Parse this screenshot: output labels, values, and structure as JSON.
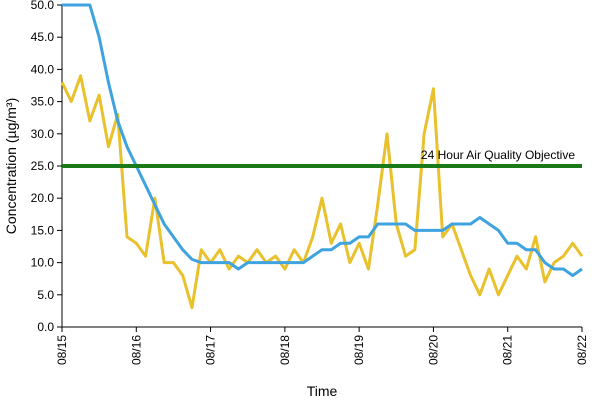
{
  "chart_data": {
    "type": "line",
    "categories": [
      "08/15",
      null,
      null,
      null,
      null,
      null,
      null,
      null,
      "08/16",
      null,
      null,
      null,
      null,
      null,
      null,
      null,
      "08/17",
      null,
      null,
      null,
      null,
      null,
      null,
      null,
      "08/18",
      null,
      null,
      null,
      null,
      null,
      null,
      null,
      "08/19",
      null,
      null,
      null,
      null,
      null,
      null,
      null,
      "08/20",
      null,
      null,
      null,
      null,
      null,
      null,
      null,
      "08/21",
      null,
      null,
      null,
      null,
      null,
      null,
      null,
      "08/22"
    ],
    "series": [
      {
        "color": "#e8c12c",
        "values": [
          38,
          35,
          39,
          32,
          36,
          28,
          33,
          14,
          13,
          11,
          20,
          10,
          10,
          8,
          3,
          12,
          10,
          12,
          9,
          11,
          10,
          12,
          10,
          11,
          9,
          12,
          10,
          14,
          20,
          13,
          16,
          10,
          13,
          9,
          19,
          30,
          16,
          11,
          12,
          30,
          37,
          14,
          16,
          12,
          8,
          5,
          9,
          5,
          8,
          11,
          9,
          14,
          7,
          10,
          11,
          13,
          11
        ]
      },
      {
        "color": "#3fa3e0",
        "values": [
          50,
          50,
          50,
          50,
          45,
          38,
          32,
          28,
          25,
          22,
          19,
          16,
          14,
          12,
          10.5,
          10,
          10,
          10,
          10,
          9,
          10,
          10,
          10,
          10,
          10,
          10,
          10,
          11,
          12,
          12,
          13,
          13,
          14,
          14,
          16,
          16,
          16,
          16,
          15,
          15,
          15,
          15,
          16,
          16,
          16,
          17,
          16,
          15,
          13,
          13,
          12,
          12,
          10,
          9,
          9,
          8,
          9
        ]
      }
    ],
    "reference_line": {
      "value": 25,
      "label": "24 Hour Air Quality Objective",
      "color": "#1a7a1a"
    },
    "xlabel": "Time",
    "ylabel": "Concentration (µg/m³)",
    "ylim": [
      0,
      50
    ],
    "yticks": [
      {
        "value": 0,
        "label": "0.0"
      },
      {
        "value": 5,
        "label": "5.0"
      },
      {
        "value": 10,
        "label": "10.0"
      },
      {
        "value": 15,
        "label": "15.0"
      },
      {
        "value": 20,
        "label": "20.0"
      },
      {
        "value": 25,
        "label": "25.0"
      },
      {
        "value": 30,
        "label": "30.0"
      },
      {
        "value": 35,
        "label": "35.0"
      },
      {
        "value": 40,
        "label": "40.0"
      },
      {
        "value": 45,
        "label": "45.0"
      },
      {
        "value": 50,
        "label": "50.0"
      }
    ]
  }
}
